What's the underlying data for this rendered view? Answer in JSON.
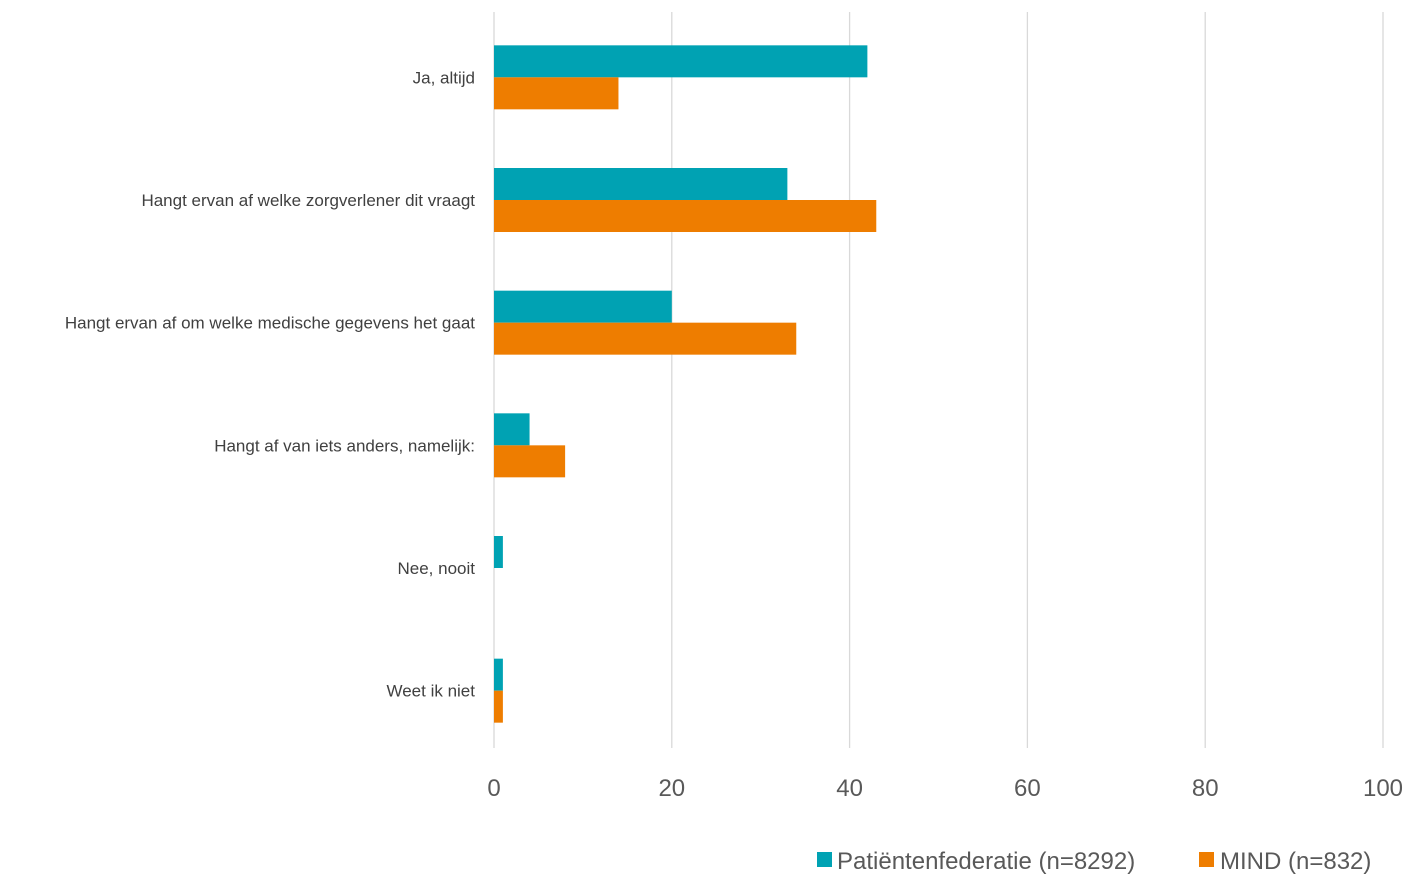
{
  "chart_data": {
    "type": "bar",
    "orientation": "horizontal",
    "title": "",
    "xlabel": "",
    "ylabel": "",
    "categories": [
      "Ja, altijd",
      "Hangt ervan af welke zorgverlener dit vraagt",
      "Hangt ervan af om welke medische gegevens het gaat",
      "Hangt af van iets anders, namelijk:",
      "Nee, nooit",
      "Weet ik niet"
    ],
    "series": [
      {
        "name": "Patiëntenfederatie (n=8292)",
        "color": "#00a2b3",
        "values": [
          42,
          33,
          20,
          4,
          1,
          1
        ]
      },
      {
        "name": "MIND (n=832)",
        "color": "#ee7d00",
        "values": [
          14,
          43,
          34,
          8,
          0,
          1
        ]
      }
    ],
    "xlim": [
      0,
      100
    ],
    "xticks": [
      0,
      20,
      40,
      60,
      80,
      100
    ],
    "grid": "vertical",
    "legend": "bottom-right"
  }
}
